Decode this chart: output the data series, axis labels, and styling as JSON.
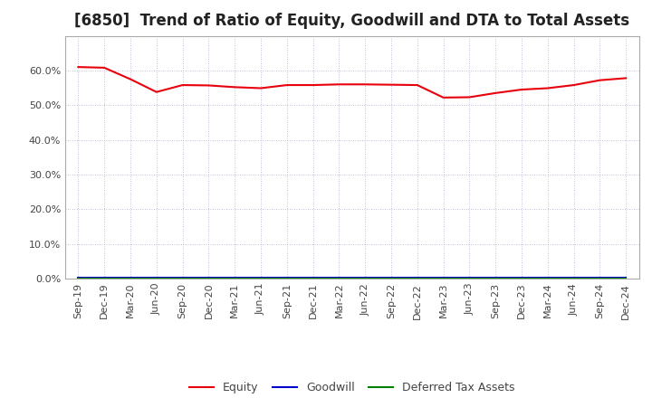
{
  "title": "[6850]  Trend of Ratio of Equity, Goodwill and DTA to Total Assets",
  "x_labels": [
    "Sep-19",
    "Dec-19",
    "Mar-20",
    "Jun-20",
    "Sep-20",
    "Dec-20",
    "Mar-21",
    "Jun-21",
    "Sep-21",
    "Dec-21",
    "Mar-22",
    "Jun-22",
    "Sep-22",
    "Dec-22",
    "Mar-23",
    "Jun-23",
    "Sep-23",
    "Dec-23",
    "Mar-24",
    "Jun-24",
    "Sep-24",
    "Dec-24"
  ],
  "equity": [
    0.61,
    0.608,
    0.575,
    0.538,
    0.558,
    0.557,
    0.552,
    0.549,
    0.558,
    0.558,
    0.56,
    0.56,
    0.559,
    0.558,
    0.522,
    0.523,
    0.535,
    0.545,
    0.549,
    0.558,
    0.572,
    0.578
  ],
  "goodwill": [
    0.002,
    0.002,
    0.002,
    0.002,
    0.002,
    0.002,
    0.002,
    0.002,
    0.002,
    0.002,
    0.002,
    0.002,
    0.002,
    0.002,
    0.002,
    0.002,
    0.002,
    0.002,
    0.002,
    0.002,
    0.002,
    0.002
  ],
  "dta": [
    0.0,
    0.0,
    0.0,
    0.0,
    0.0,
    0.0,
    0.0,
    0.0,
    0.0,
    0.0,
    0.0,
    0.0,
    0.0,
    0.0,
    0.0,
    0.0,
    0.0,
    0.0,
    0.0,
    0.0,
    0.0,
    0.0
  ],
  "equity_color": "#e8000d",
  "goodwill_color": "#0000cc",
  "dta_color": "#008000",
  "background_color": "#ffffff",
  "plot_bg_color": "#ffffff",
  "grid_color": "#aaaacc",
  "spine_color": "#aaaaaa",
  "ylim": [
    0.0,
    0.7
  ],
  "yticks": [
    0.0,
    0.1,
    0.2,
    0.3,
    0.4,
    0.5,
    0.6
  ],
  "title_fontsize": 12,
  "tick_fontsize": 8,
  "legend_fontsize": 9
}
